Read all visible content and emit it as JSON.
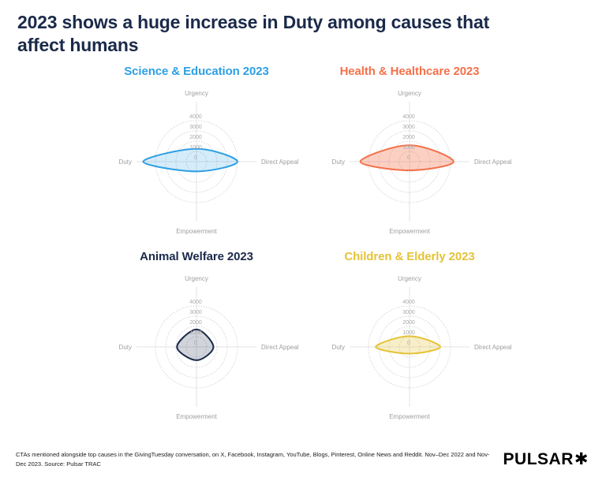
{
  "page": {
    "title_lines": [
      "2023 shows a huge increase in Duty among causes that",
      "affect humans"
    ],
    "title_color": "#1B2A4A",
    "footnote": "CTAs mentioned alongside top causes in the GivingTuesday conversation, on X, Facebook, Instagram, YouTube, Blogs, Pinterest, Online News and Reddit. Nov–Dec 2022 and Nov-Dec 2023. Source: Pulsar TRAC",
    "brand": "PULSAR",
    "brand_mark": "✱"
  },
  "chart_data": [
    {
      "type": "radar",
      "title": "Science & Education 2023",
      "title_color": "#2D9FE4",
      "color": "#2D9FE4",
      "fill_opacity": 0.2,
      "categories": [
        "Urgency",
        "Direct Appeal",
        "Empowerment",
        "Duty"
      ],
      "values": [
        1250,
        4000,
        950,
        5200
      ],
      "ticks": [
        0,
        1000,
        2000,
        3000,
        4000
      ],
      "rings": [
        1000,
        2000,
        3000,
        4000
      ],
      "rmax": 4000,
      "grid": "dotted-circles",
      "legend": "none"
    },
    {
      "type": "radar",
      "title": "Health & Healthcare 2023",
      "title_color": "#F4714A",
      "color": "#F4714A",
      "fill_opacity": 0.33,
      "categories": [
        "Urgency",
        "Direct Appeal",
        "Empowerment",
        "Duty"
      ],
      "values": [
        1600,
        4300,
        850,
        4800
      ],
      "ticks": [
        0,
        1000,
        2000,
        3000,
        4000
      ],
      "rings": [
        1000,
        2000,
        3000,
        4000
      ],
      "rmax": 4000,
      "grid": "dotted-circles",
      "legend": "none"
    },
    {
      "type": "radar",
      "title": "Animal Welfare 2023",
      "title_color": "#1B2A4A",
      "color": "#1B2A4A",
      "fill_opacity": 0.2,
      "categories": [
        "Urgency",
        "Direct Appeal",
        "Empowerment",
        "Duty"
      ],
      "values": [
        1700,
        1650,
        1300,
        1900
      ],
      "ticks": [
        0,
        1000,
        2000,
        3000,
        4000
      ],
      "rings": [
        1000,
        2000,
        3000,
        4000
      ],
      "rmax": 4000,
      "grid": "dotted-circles",
      "legend": "none"
    },
    {
      "type": "radar",
      "title": "Children & Elderly 2023",
      "title_color": "#E4C338",
      "color": "#E4C338",
      "fill_opacity": 0.27,
      "categories": [
        "Urgency",
        "Direct Appeal",
        "Empowerment",
        "Duty"
      ],
      "values": [
        1050,
        3000,
        650,
        3300
      ],
      "ticks": [
        0,
        1000,
        2000,
        3000,
        4000
      ],
      "rings": [
        1000,
        2000,
        3000,
        4000
      ],
      "rmax": 4000,
      "grid": "dotted-circles",
      "legend": "none"
    }
  ]
}
